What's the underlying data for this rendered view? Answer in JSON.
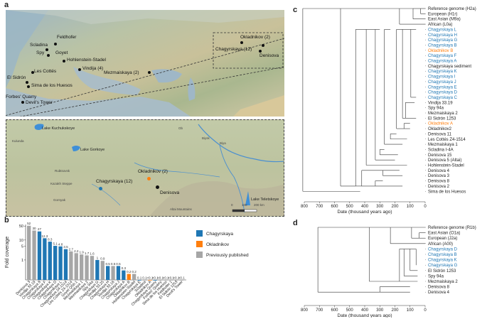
{
  "panels": {
    "a": "a",
    "b": "b",
    "c": "c",
    "d": "d"
  },
  "map_a": {
    "sites": [
      {
        "name": "Feldhofer"
      },
      {
        "name": "Scladina"
      },
      {
        "name": "Spy"
      },
      {
        "name": "Goyet"
      },
      {
        "name": "Hohlenstein-Stadel"
      },
      {
        "name": "Vindija (4)"
      },
      {
        "name": "Les Cottés"
      },
      {
        "name": "El Sidrón"
      },
      {
        "name": "Sima de los Huesos"
      },
      {
        "name": "Mezmaiskaya (2)"
      },
      {
        "name": "Forbes' Quarry"
      },
      {
        "name": "Devil's Tower"
      },
      {
        "name": "Okladnikov (2)"
      },
      {
        "name": "Chagyrskaya (12)"
      },
      {
        "name": "Denisova"
      }
    ]
  },
  "map_b": {
    "lakes": [
      "Lake Kuchukskoye",
      "Lake Gorkoye",
      "Lake Teletskoye"
    ],
    "places": [
      "Kulunda",
      "Rubtsovsk",
      "Kazakh Steppe",
      "Gornyak",
      "Biysk",
      "Ob",
      "Biya",
      "Altai Mountains"
    ],
    "sites": [
      "Chagyrskaya (12)",
      "Okladnikov (2)",
      "Denisova"
    ],
    "scale": {
      "labels": [
        "0",
        "100",
        "200 km"
      ]
    }
  },
  "colors": {
    "chagyrskaya": "#1f77b4",
    "okladnikov": "#ff7f0e",
    "published": "#a6a6a6"
  },
  "chart_data": [
    {
      "type": "bar",
      "ylabel": "Fold coverage",
      "yscale": "log",
      "yticks": [
        "1",
        "5",
        "10",
        "50"
      ],
      "categories": [
        "Denisova 3",
        "Vindija 33.19",
        "Chagyrskaya 8",
        "Chagyrskaya F",
        "Chagyrskaya K",
        "Chagyrskaya D",
        "Chagyrskaya L",
        "Chagyrskaya 24-1514",
        "Les Cottés Z4-1514",
        "Goyet Q56-1",
        "Mezmaiskaya 1",
        "Mezmaiskaya 2",
        "Spy 94a",
        "Chagyrskaya G",
        "Vindija 33.25",
        "Chagyrskaya H",
        "Vindija 33.16",
        "Chagyrskaya J",
        "Chagyrskaya A",
        "Okladnikov B",
        "Hohlenstein-Stadel",
        "Chagyrskaya E",
        "Scladina",
        "Okladnikov A",
        "Chagyrskaya Quarry",
        "Forbes' Quarry",
        "Sima de los Huesos",
        "Feldhofer 1",
        "El Sidrón 1253",
        "Devil's Tower"
      ],
      "values": [
        52,
        30,
        27,
        12.3,
        8.3,
        5.1,
        4.8,
        3.5,
        2.7,
        2.2,
        1.9,
        1.7,
        1.6,
        1,
        0.9,
        0.5,
        0.5,
        0.5,
        0.3,
        0.2,
        0.2,
        0.1,
        0.1,
        0.1,
        0.1,
        0.1,
        0.1,
        0.1,
        0.1,
        0.1
      ],
      "value_labels": [
        "52",
        "30",
        "27",
        "12.3",
        "8.3",
        "5.1",
        "4.8",
        "3.5",
        "2.7",
        "2.2",
        "1.9",
        "1.7",
        "1.6",
        "1",
        "0.9",
        "0.5",
        "0.5",
        "0.5",
        "0.3",
        "0.2",
        "0.2",
        "0.1",
        "0.1",
        "<0.1",
        "<0.1",
        "<0.1",
        "<0.1",
        "<0.1",
        "<0.1",
        "<0.1"
      ],
      "groups": [
        "published",
        "published",
        "chagyrskaya",
        "chagyrskaya",
        "chagyrskaya",
        "chagyrskaya",
        "chagyrskaya",
        "chagyrskaya",
        "published",
        "published",
        "published",
        "published",
        "published",
        "chagyrskaya",
        "published",
        "chagyrskaya",
        "published",
        "chagyrskaya",
        "chagyrskaya",
        "okladnikov",
        "published",
        "chagyrskaya",
        "published",
        "okladnikov",
        "chagyrskaya",
        "published",
        "published",
        "published",
        "published",
        "published"
      ],
      "legend": [
        {
          "label": "Chagyrskaya",
          "group": "chagyrskaya"
        },
        {
          "label": "Okladnikov",
          "group": "okladnikov"
        },
        {
          "label": "Previously published",
          "group": "published"
        }
      ]
    },
    {
      "type": "tree",
      "xlabel": "Date (thousand years ago)",
      "xticks": [
        800,
        700,
        600,
        500,
        400,
        300,
        200,
        100,
        0
      ],
      "leaves": [
        {
          "label": "Reference genome (H2a)",
          "group": "published"
        },
        {
          "label": "European (H1r)",
          "group": "published"
        },
        {
          "label": "East Asian (M9a)",
          "group": "published"
        },
        {
          "label": "African (L0a)",
          "group": "published"
        },
        {
          "label": "Chagyrskaya L",
          "group": "chagyrskaya"
        },
        {
          "label": "Chagyrskaya H",
          "group": "chagyrskaya"
        },
        {
          "label": "Chagyrskaya G",
          "group": "chagyrskaya"
        },
        {
          "label": "Chagyrskaya B",
          "group": "chagyrskaya"
        },
        {
          "label": "Okladnikov B",
          "group": "okladnikov"
        },
        {
          "label": "Chagyrskaya F",
          "group": "chagyrskaya"
        },
        {
          "label": "Chagyrskaya A",
          "group": "chagyrskaya"
        },
        {
          "label": "Chagyrskaya sediment",
          "group": "published"
        },
        {
          "label": "Chagyrskaya K",
          "group": "chagyrskaya"
        },
        {
          "label": "Chagyrskaya I",
          "group": "chagyrskaya"
        },
        {
          "label": "Chagyrskaya J",
          "group": "chagyrskaya"
        },
        {
          "label": "Chagyrskaya E",
          "group": "chagyrskaya"
        },
        {
          "label": "Chagyrskaya D",
          "group": "chagyrskaya"
        },
        {
          "label": "Chagyrskaya C",
          "group": "chagyrskaya"
        },
        {
          "label": "Vindija 33.19",
          "group": "published"
        },
        {
          "label": "Spy 94a",
          "group": "published"
        },
        {
          "label": "Mezmaiskaya 2",
          "group": "published"
        },
        {
          "label": "El Sidrón 1253",
          "group": "published"
        },
        {
          "label": "Okladnikov A",
          "group": "okladnikov"
        },
        {
          "label": "Okladnikov2",
          "group": "published"
        },
        {
          "label": "Denisova 11",
          "group": "published"
        },
        {
          "label": "Les Cottés Z4-1514",
          "group": "published"
        },
        {
          "label": "Mezmaiskaya 1",
          "group": "published"
        },
        {
          "label": "Scladina I-4A",
          "group": "published"
        },
        {
          "label": "Denisova 15",
          "group": "published"
        },
        {
          "label": "Denisova 5 (Altai)",
          "group": "published"
        },
        {
          "label": "Hohlenstein-Stadel",
          "group": "published"
        },
        {
          "label": "Denisova 4",
          "group": "published"
        },
        {
          "label": "Denisova 3",
          "group": "published"
        },
        {
          "label": "Denisova 8",
          "group": "published"
        },
        {
          "label": "Denisova 2",
          "group": "published"
        },
        {
          "label": "Sima de los Huesos",
          "group": "published"
        }
      ]
    },
    {
      "type": "tree",
      "xlabel": "Date (thousand years ago)",
      "xticks": [
        800,
        700,
        600,
        500,
        400,
        300,
        200,
        100,
        0
      ],
      "leaves": [
        {
          "label": "Reference genome (R1b)",
          "group": "published"
        },
        {
          "label": "East Asian (O1a)",
          "group": "published"
        },
        {
          "label": "European (J2a)",
          "group": "published"
        },
        {
          "label": "African (A00)",
          "group": "published"
        },
        {
          "label": "Chagyrskaya D",
          "group": "chagyrskaya"
        },
        {
          "label": "Chagyrskaya B",
          "group": "chagyrskaya"
        },
        {
          "label": "Chagyrskaya K",
          "group": "chagyrskaya"
        },
        {
          "label": "Chagyrskaya G",
          "group": "chagyrskaya"
        },
        {
          "label": "El Sidrón 1253",
          "group": "published"
        },
        {
          "label": "Spy 94a",
          "group": "published"
        },
        {
          "label": "Mezmaiskaya 2",
          "group": "published"
        },
        {
          "label": "Denisova 8",
          "group": "published"
        },
        {
          "label": "Denisova 4",
          "group": "published"
        }
      ]
    }
  ]
}
